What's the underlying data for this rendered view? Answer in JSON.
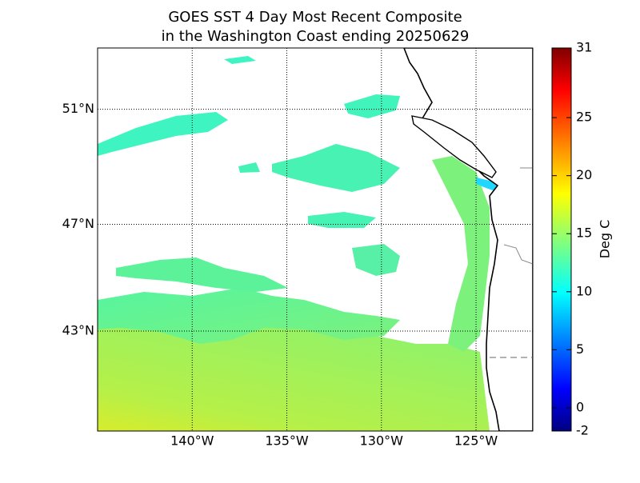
{
  "chart_data": {
    "type": "map",
    "title": [
      "GOES SST 4 Day Most Recent Composite",
      "in the Washington Coast ending 20250629"
    ],
    "projection": "mercator",
    "xlim": [
      -145,
      -122
    ],
    "ylim": [
      39,
      53
    ],
    "xticks": [
      {
        "value": -140,
        "label": "140°W"
      },
      {
        "value": -135,
        "label": "135°W"
      },
      {
        "value": -130,
        "label": "130°W"
      },
      {
        "value": -125,
        "label": "125°W"
      }
    ],
    "yticks": [
      {
        "value": 43,
        "label": "43°N"
      },
      {
        "value": 47,
        "label": "47°N"
      },
      {
        "value": 51,
        "label": "51°N"
      }
    ],
    "grid": true,
    "colorbar": {
      "label": "Deg C",
      "lim": [
        -2,
        31
      ],
      "ticks": [
        -2,
        0,
        5,
        10,
        15,
        20,
        25,
        31
      ],
      "colormap": "jet"
    }
  }
}
